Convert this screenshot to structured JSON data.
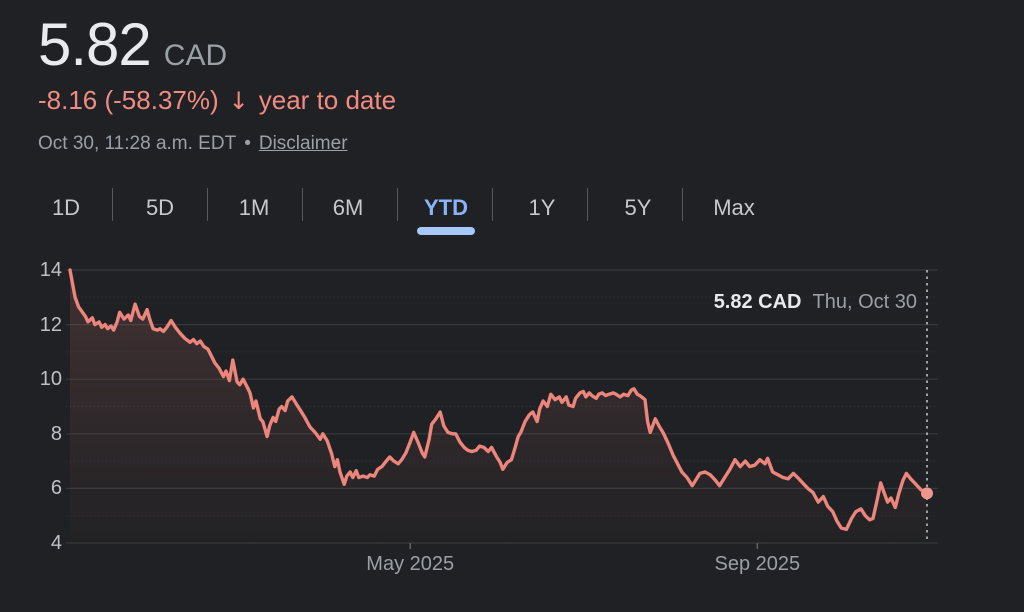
{
  "header": {
    "price": "5.82",
    "currency": "CAD",
    "change": "-8.16 (-58.37%)",
    "down_arrow": "↓",
    "change_period": "year to date",
    "timestamp": "Oct 30, 11:28 a.m. EDT",
    "separator": "•",
    "disclaimer_label": "Disclaimer"
  },
  "range_tabs": {
    "items": [
      {
        "label": "1D",
        "active": false
      },
      {
        "label": "5D",
        "active": false
      },
      {
        "label": "1M",
        "active": false
      },
      {
        "label": "6M",
        "active": false
      },
      {
        "label": "YTD",
        "active": true
      },
      {
        "label": "1Y",
        "active": false
      },
      {
        "label": "5Y",
        "active": false
      },
      {
        "label": "Max",
        "active": false
      }
    ]
  },
  "tooltip": {
    "price": "5.82 CAD",
    "date": "Thu, Oct 30"
  },
  "colors": {
    "background": "#202124",
    "primary_text": "#e8eaed",
    "secondary_text": "#9aa0a6",
    "axis_text": "#bdc1c6",
    "negative": "#f28b82",
    "line": "#ec857b",
    "end_dot": "#f0968c",
    "accent_blue": "#8ab4f8",
    "tab_indicator": "#a8c7fa",
    "gridline": "#35383c"
  },
  "chart_data": {
    "type": "line",
    "title": "YTD price chart, 5.82 CAD, down 58.37% year to date",
    "currency": "CAD",
    "ylim": [
      4,
      14
    ],
    "y_ticks": [
      14,
      12,
      10,
      8,
      6,
      4
    ],
    "y_minor_ticks": [
      13,
      11,
      9,
      7,
      5
    ],
    "grid": "major solid, minor dotted, horizontal only",
    "x_ticks": [
      {
        "label": "May 2025",
        "pos": 0.397
      },
      {
        "label": "Sep 2025",
        "pos": 0.802
      }
    ],
    "start_value": 14.0,
    "last_point": {
      "value": 5.82,
      "label": "5.82 CAD",
      "date": "Thu, Oct 30"
    },
    "series": [
      {
        "name": "price",
        "points": [
          [
            0.0,
            14.0
          ],
          [
            0.006,
            13.0
          ],
          [
            0.01,
            12.65
          ],
          [
            0.018,
            12.3
          ],
          [
            0.021,
            12.1
          ],
          [
            0.026,
            12.25
          ],
          [
            0.029,
            12.0
          ],
          [
            0.034,
            12.1
          ],
          [
            0.037,
            11.9
          ],
          [
            0.041,
            12.0
          ],
          [
            0.044,
            11.85
          ],
          [
            0.048,
            11.95
          ],
          [
            0.051,
            11.8
          ],
          [
            0.055,
            12.1
          ],
          [
            0.058,
            12.45
          ],
          [
            0.063,
            12.2
          ],
          [
            0.068,
            12.35
          ],
          [
            0.071,
            12.15
          ],
          [
            0.076,
            12.75
          ],
          [
            0.081,
            12.3
          ],
          [
            0.085,
            12.2
          ],
          [
            0.09,
            12.55
          ],
          [
            0.093,
            12.2
          ],
          [
            0.097,
            11.85
          ],
          [
            0.102,
            11.8
          ],
          [
            0.105,
            11.85
          ],
          [
            0.109,
            11.75
          ],
          [
            0.113,
            11.9
          ],
          [
            0.118,
            12.15
          ],
          [
            0.123,
            11.9
          ],
          [
            0.128,
            11.7
          ],
          [
            0.134,
            11.5
          ],
          [
            0.14,
            11.35
          ],
          [
            0.144,
            11.45
          ],
          [
            0.148,
            11.3
          ],
          [
            0.152,
            11.4
          ],
          [
            0.156,
            11.2
          ],
          [
            0.161,
            11.1
          ],
          [
            0.165,
            10.85
          ],
          [
            0.169,
            10.6
          ],
          [
            0.174,
            10.4
          ],
          [
            0.179,
            10.1
          ],
          [
            0.182,
            10.3
          ],
          [
            0.186,
            9.95
          ],
          [
            0.19,
            10.7
          ],
          [
            0.195,
            9.9
          ],
          [
            0.198,
            9.8
          ],
          [
            0.202,
            10.0
          ],
          [
            0.207,
            9.7
          ],
          [
            0.21,
            9.5
          ],
          [
            0.214,
            8.95
          ],
          [
            0.217,
            9.2
          ],
          [
            0.222,
            8.55
          ],
          [
            0.225,
            8.45
          ],
          [
            0.23,
            7.9
          ],
          [
            0.233,
            8.3
          ],
          [
            0.237,
            8.6
          ],
          [
            0.24,
            8.45
          ],
          [
            0.244,
            8.9
          ],
          [
            0.247,
            9.0
          ],
          [
            0.251,
            8.85
          ],
          [
            0.254,
            9.2
          ],
          [
            0.259,
            9.35
          ],
          [
            0.264,
            9.1
          ],
          [
            0.268,
            8.9
          ],
          [
            0.274,
            8.6
          ],
          [
            0.28,
            8.25
          ],
          [
            0.286,
            8.05
          ],
          [
            0.292,
            7.8
          ],
          [
            0.295,
            8.0
          ],
          [
            0.3,
            7.75
          ],
          [
            0.305,
            7.3
          ],
          [
            0.309,
            6.8
          ],
          [
            0.312,
            7.05
          ],
          [
            0.315,
            6.6
          ],
          [
            0.32,
            6.15
          ],
          [
            0.323,
            6.45
          ],
          [
            0.327,
            6.6
          ],
          [
            0.33,
            6.4
          ],
          [
            0.334,
            6.65
          ],
          [
            0.337,
            6.4
          ],
          [
            0.342,
            6.45
          ],
          [
            0.347,
            6.4
          ],
          [
            0.35,
            6.5
          ],
          [
            0.355,
            6.45
          ],
          [
            0.359,
            6.7
          ],
          [
            0.364,
            6.8
          ],
          [
            0.369,
            7.0
          ],
          [
            0.373,
            7.15
          ],
          [
            0.378,
            7.0
          ],
          [
            0.383,
            6.9
          ],
          [
            0.387,
            7.05
          ],
          [
            0.392,
            7.3
          ],
          [
            0.397,
            7.7
          ],
          [
            0.401,
            8.05
          ],
          [
            0.406,
            7.7
          ],
          [
            0.411,
            7.3
          ],
          [
            0.414,
            7.15
          ],
          [
            0.419,
            7.8
          ],
          [
            0.422,
            8.35
          ],
          [
            0.427,
            8.55
          ],
          [
            0.432,
            8.8
          ],
          [
            0.436,
            8.3
          ],
          [
            0.441,
            8.05
          ],
          [
            0.446,
            8.0
          ],
          [
            0.45,
            8.0
          ],
          [
            0.455,
            7.7
          ],
          [
            0.46,
            7.5
          ],
          [
            0.464,
            7.4
          ],
          [
            0.469,
            7.35
          ],
          [
            0.474,
            7.4
          ],
          [
            0.478,
            7.55
          ],
          [
            0.483,
            7.5
          ],
          [
            0.488,
            7.35
          ],
          [
            0.492,
            7.5
          ],
          [
            0.497,
            7.2
          ],
          [
            0.502,
            6.95
          ],
          [
            0.505,
            6.7
          ],
          [
            0.51,
            6.95
          ],
          [
            0.515,
            7.05
          ],
          [
            0.519,
            7.45
          ],
          [
            0.523,
            7.9
          ],
          [
            0.526,
            8.05
          ],
          [
            0.531,
            8.45
          ],
          [
            0.536,
            8.7
          ],
          [
            0.54,
            8.8
          ],
          [
            0.545,
            8.45
          ],
          [
            0.548,
            8.9
          ],
          [
            0.552,
            9.2
          ],
          [
            0.557,
            9.0
          ],
          [
            0.561,
            9.45
          ],
          [
            0.566,
            9.25
          ],
          [
            0.571,
            9.35
          ],
          [
            0.574,
            9.15
          ],
          [
            0.579,
            9.35
          ],
          [
            0.582,
            9.05
          ],
          [
            0.587,
            9.0
          ],
          [
            0.59,
            9.3
          ],
          [
            0.595,
            9.5
          ],
          [
            0.599,
            9.55
          ],
          [
            0.602,
            9.35
          ],
          [
            0.606,
            9.5
          ],
          [
            0.609,
            9.4
          ],
          [
            0.614,
            9.3
          ],
          [
            0.617,
            9.45
          ],
          [
            0.621,
            9.5
          ],
          [
            0.625,
            9.4
          ],
          [
            0.629,
            9.45
          ],
          [
            0.634,
            9.5
          ],
          [
            0.637,
            9.45
          ],
          [
            0.642,
            9.35
          ],
          [
            0.646,
            9.45
          ],
          [
            0.651,
            9.4
          ],
          [
            0.655,
            9.6
          ],
          [
            0.658,
            9.65
          ],
          [
            0.662,
            9.45
          ],
          [
            0.665,
            9.4
          ],
          [
            0.671,
            9.25
          ],
          [
            0.674,
            8.45
          ],
          [
            0.677,
            8.05
          ],
          [
            0.683,
            8.55
          ],
          [
            0.688,
            8.25
          ],
          [
            0.692,
            8.05
          ],
          [
            0.698,
            7.65
          ],
          [
            0.704,
            7.2
          ],
          [
            0.709,
            6.9
          ],
          [
            0.714,
            6.6
          ],
          [
            0.72,
            6.4
          ],
          [
            0.726,
            6.1
          ],
          [
            0.729,
            6.25
          ],
          [
            0.735,
            6.55
          ],
          [
            0.741,
            6.6
          ],
          [
            0.747,
            6.5
          ],
          [
            0.753,
            6.3
          ],
          [
            0.758,
            6.1
          ],
          [
            0.764,
            6.4
          ],
          [
            0.77,
            6.7
          ],
          [
            0.776,
            7.05
          ],
          [
            0.782,
            6.8
          ],
          [
            0.788,
            7.0
          ],
          [
            0.793,
            6.8
          ],
          [
            0.799,
            6.85
          ],
          [
            0.805,
            7.05
          ],
          [
            0.811,
            6.9
          ],
          [
            0.814,
            7.1
          ],
          [
            0.82,
            6.6
          ],
          [
            0.826,
            6.5
          ],
          [
            0.832,
            6.4
          ],
          [
            0.838,
            6.35
          ],
          [
            0.844,
            6.55
          ],
          [
            0.849,
            6.4
          ],
          [
            0.855,
            6.2
          ],
          [
            0.861,
            6.0
          ],
          [
            0.867,
            5.85
          ],
          [
            0.873,
            5.5
          ],
          [
            0.879,
            5.7
          ],
          [
            0.884,
            5.35
          ],
          [
            0.89,
            5.15
          ],
          [
            0.895,
            4.8
          ],
          [
            0.9,
            4.55
          ],
          [
            0.906,
            4.5
          ],
          [
            0.912,
            4.9
          ],
          [
            0.917,
            5.15
          ],
          [
            0.923,
            5.25
          ],
          [
            0.928,
            5.0
          ],
          [
            0.933,
            4.85
          ],
          [
            0.937,
            4.9
          ],
          [
            0.942,
            5.6
          ],
          [
            0.946,
            6.2
          ],
          [
            0.951,
            5.75
          ],
          [
            0.954,
            5.5
          ],
          [
            0.958,
            5.65
          ],
          [
            0.963,
            5.3
          ],
          [
            0.967,
            5.8
          ],
          [
            0.972,
            6.3
          ],
          [
            0.976,
            6.55
          ],
          [
            0.981,
            6.35
          ],
          [
            0.987,
            6.15
          ],
          [
            0.993,
            5.95
          ],
          [
            1.0,
            5.82
          ]
        ]
      }
    ]
  }
}
